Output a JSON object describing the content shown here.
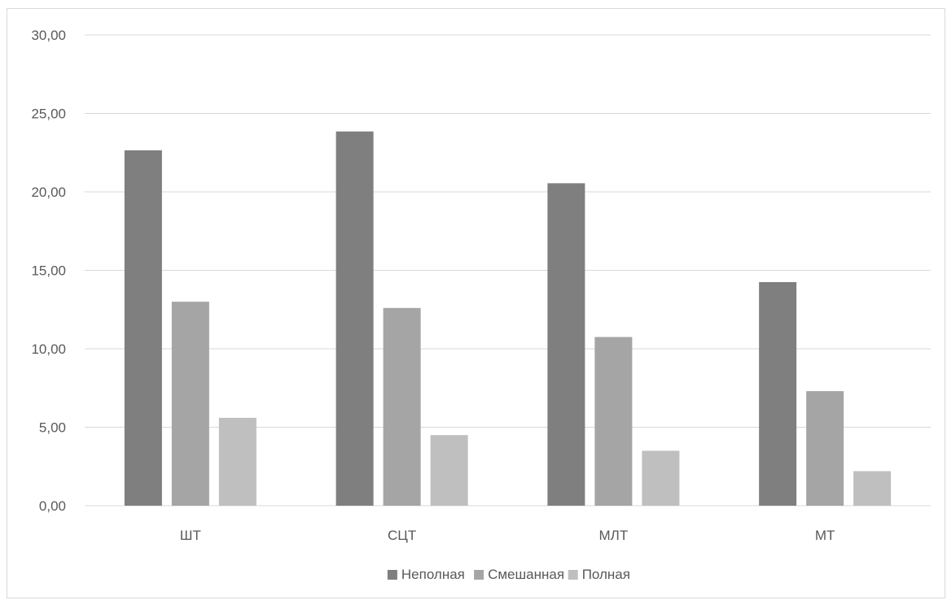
{
  "chart_data": {
    "type": "bar",
    "title": "",
    "xlabel": "",
    "ylabel": "",
    "categories": [
      "ШТ",
      "СЦТ",
      "МЛТ",
      "МТ"
    ],
    "series": [
      {
        "name": "Неполная",
        "color": "#7f7f7f",
        "values": [
          22.65,
          23.85,
          20.55,
          14.25
        ]
      },
      {
        "name": "Смешанная",
        "color": "#a5a5a5",
        "values": [
          13.0,
          12.6,
          10.75,
          7.3
        ]
      },
      {
        "name": "Полная",
        "color": "#bfbfbf",
        "values": [
          5.6,
          4.5,
          3.5,
          2.2
        ]
      }
    ],
    "ylim": [
      0,
      30
    ],
    "yticks": [
      "0,00",
      "5,00",
      "10,00",
      "15,00",
      "20,00",
      "25,00",
      "30,00"
    ],
    "grid": true,
    "gridline_color": "#d9d9d9",
    "legend_position": "bottom"
  }
}
